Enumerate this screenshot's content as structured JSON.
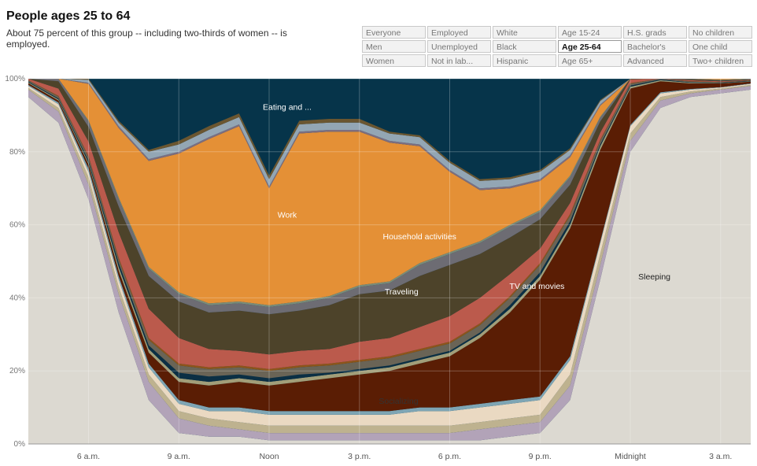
{
  "header": {
    "title": "People ages 25 to 64",
    "subtitle": "About 75 percent of this group -- including two-thirds of women -- is employed."
  },
  "filters": [
    [
      "Everyone",
      "Men",
      "Women"
    ],
    [
      "Employed",
      "Unemployed",
      "Not in lab..."
    ],
    [
      "White",
      "Black",
      "Hispanic"
    ],
    [
      "Age 15-24",
      "Age 25-64",
      "Age 65+"
    ],
    [
      "H.S. grads",
      "Bachelor's",
      "Advanced"
    ],
    [
      "No children",
      "One child",
      "Two+ children"
    ]
  ],
  "active_filter": "Age 25-64",
  "chart_data": {
    "type": "area",
    "stacked": true,
    "x": [
      4,
      5,
      6,
      7,
      8,
      9,
      10,
      11,
      12,
      13,
      14,
      15,
      16,
      17,
      18,
      19,
      20,
      21,
      22,
      23,
      24,
      25,
      26,
      27,
      28
    ],
    "x_ticks": [
      "6 a.m.",
      "9 a.m.",
      "Noon",
      "3 p.m.",
      "6 p.m.",
      "9 p.m.",
      "Midnight",
      "3 a.m."
    ],
    "x_tick_positions": [
      6,
      9,
      12,
      15,
      18,
      21,
      24,
      27
    ],
    "y_ticks": [
      "0%",
      "20%",
      "40%",
      "60%",
      "80%",
      "100%"
    ],
    "ylim": [
      0,
      100
    ],
    "grid": true,
    "series": [
      {
        "name": "Sleeping",
        "color": "#dcd9d1",
        "values": [
          95,
          88,
          67,
          36,
          12,
          3,
          2,
          2,
          1,
          1,
          1,
          1,
          1,
          1,
          1,
          1,
          2,
          3,
          12,
          45,
          80,
          92,
          95,
          96,
          97
        ]
      },
      {
        "name": "",
        "color": "#b2a3b8",
        "values": [
          2,
          3,
          4,
          5,
          5,
          4,
          3,
          2,
          2,
          2,
          2,
          2,
          2,
          2,
          2,
          3,
          3,
          3,
          4,
          4,
          3,
          2,
          1,
          1,
          1
        ]
      },
      {
        "name": "",
        "color": "#beb28f",
        "values": [
          0.5,
          1,
          2,
          2,
          2,
          2,
          2,
          2,
          2,
          2,
          2,
          2,
          2,
          2,
          2,
          2,
          2,
          2,
          3,
          3,
          2,
          1,
          0.5,
          0.3,
          0.3
        ]
      },
      {
        "name": "Socializing",
        "color": "#ead9c2",
        "values": [
          0.5,
          1,
          1.5,
          2,
          2,
          2,
          2,
          3,
          3,
          3,
          3,
          3,
          3,
          4,
          4,
          4,
          4,
          4,
          4,
          3,
          2,
          1,
          0.5,
          0.3,
          0.3
        ]
      },
      {
        "name": "",
        "color": "#7ea5b4",
        "values": [
          0.3,
          0.5,
          1,
          1,
          1,
          1,
          1,
          1,
          1,
          1,
          1,
          1,
          1,
          1,
          1,
          1,
          1,
          1,
          1,
          0.5,
          0.3,
          0.3,
          0.2,
          0.1,
          0.1
        ]
      },
      {
        "name": "TV and movies",
        "color": "#5a1d04",
        "values": [
          0.5,
          0.5,
          1,
          1.5,
          3,
          5,
          6,
          7,
          7,
          8,
          9,
          10,
          11,
          12,
          14,
          18,
          24,
          32,
          35,
          25,
          10,
          3,
          1.5,
          1,
          0.5
        ]
      },
      {
        "name": "",
        "color": "#a29e79",
        "values": [
          0.2,
          0.3,
          0.5,
          1,
          1,
          1,
          1,
          1,
          1,
          1,
          1,
          1,
          1,
          1,
          1,
          1,
          1,
          1,
          1,
          1,
          0.5,
          0.3,
          0.2,
          0.1,
          0.1
        ]
      },
      {
        "name": "",
        "color": "#0b2f44",
        "values": [
          0.2,
          0.3,
          0.5,
          1,
          1,
          1.5,
          1.5,
          1,
          1,
          1,
          0.5,
          0.5,
          0.5,
          0.5,
          0.5,
          0.5,
          1,
          1,
          1,
          0.5,
          0.3,
          0.2,
          0.1,
          0.1,
          0.1
        ]
      },
      {
        "name": "",
        "color": "#6a6456",
        "values": [
          0.3,
          0.5,
          1,
          1,
          1.5,
          2,
          2,
          2,
          2,
          2,
          2,
          2,
          2,
          2,
          2,
          2,
          2,
          2,
          1.5,
          1,
          0.5,
          0.3,
          0.2,
          0.1,
          0.1
        ]
      },
      {
        "name": "",
        "color": "#8e5519",
        "values": [
          0.1,
          0.2,
          0.3,
          0.5,
          0.5,
          0.5,
          0.5,
          0.5,
          0.5,
          0.5,
          0.5,
          0.5,
          0.5,
          0.5,
          0.5,
          0.5,
          0.5,
          0.5,
          0.5,
          0.3,
          0.2,
          0.1,
          0.1,
          0.1,
          0.1
        ]
      },
      {
        "name": "Traveling",
        "color": "#bb5a4c",
        "values": [
          0.5,
          2,
          4,
          7,
          8,
          7,
          5,
          4,
          4,
          4,
          4,
          5,
          5,
          6,
          7,
          7,
          6,
          4,
          3,
          2,
          1,
          0.5,
          0.3,
          0.2,
          0.1
        ]
      },
      {
        "name": "Household activities",
        "color": "#4d432a",
        "values": [
          0.5,
          2,
          4,
          7,
          9,
          10,
          10,
          11,
          11,
          11,
          12,
          13,
          13,
          14,
          14,
          12,
          10,
          8,
          5,
          3,
          1.5,
          0.5,
          0.3,
          0.2,
          0.1
        ]
      },
      {
        "name": "",
        "color": "#6d6c73",
        "values": [
          0.3,
          1,
          1.5,
          2,
          2,
          2,
          2,
          2,
          2,
          2,
          2,
          2,
          2,
          3,
          3,
          3,
          3,
          2,
          2,
          1,
          0.5,
          0.3,
          0.2,
          0.1,
          0.1
        ]
      },
      {
        "name": "",
        "color": "#7a8c79",
        "values": [
          0.1,
          0.2,
          0.3,
          0.5,
          0.5,
          0.5,
          0.5,
          0.5,
          0.5,
          0.5,
          0.5,
          0.5,
          0.5,
          0.5,
          0.5,
          0.5,
          0.5,
          0.5,
          0.5,
          0.3,
          0.2,
          0.1,
          0.1,
          0.1,
          0.1
        ]
      },
      {
        "name": "Work",
        "color": "#e49036",
        "values": [
          1,
          2,
          10,
          19,
          29,
          38,
          45,
          48,
          32,
          46,
          45,
          42,
          38,
          32,
          22,
          14,
          10,
          8,
          5,
          3,
          2,
          1,
          0.5,
          0.5,
          0.5
        ]
      },
      {
        "name": "",
        "color": "#7d6e80",
        "values": [
          0.1,
          0.2,
          0.3,
          0.5,
          0.5,
          0.5,
          0.5,
          0.5,
          0.5,
          0.5,
          0.5,
          0.5,
          0.5,
          0.5,
          0.5,
          0.5,
          0.5,
          0.5,
          0.5,
          0.3,
          0.2,
          0.1,
          0.1,
          0.1,
          0.1
        ]
      },
      {
        "name": "",
        "color": "#93a6b4",
        "values": [
          0.2,
          0.4,
          0.8,
          1,
          2,
          2,
          2,
          2,
          2,
          2,
          2,
          2,
          2,
          2,
          2,
          2,
          2,
          2,
          1.5,
          1,
          0.6,
          0.4,
          0.2,
          0.2,
          0.2
        ]
      },
      {
        "name": "",
        "color": "#6b5630",
        "values": [
          0.1,
          0.2,
          0.3,
          0.5,
          0.5,
          1,
          1,
          1,
          1,
          1,
          1,
          1,
          0.5,
          0.5,
          0.5,
          0.5,
          0.5,
          0.5,
          0.5,
          0.3,
          0.2,
          0.1,
          0.1,
          0.1,
          0.1
        ]
      }
    ],
    "labels": [
      {
        "text": "Eating and ...",
        "series": "",
        "x": 12.6,
        "y": 91.5,
        "color": "#ffffff"
      },
      {
        "text": "Work",
        "series": "Work",
        "x": 12.6,
        "y": 62,
        "color": "#ffffff"
      },
      {
        "text": "Household activities",
        "series": "Household activities",
        "x": 17,
        "y": 56,
        "color": "#ffffff"
      },
      {
        "text": "Traveling",
        "series": "Traveling",
        "x": 16.4,
        "y": 41,
        "color": "#ffffff"
      },
      {
        "text": "TV and movies",
        "series": "TV and movies",
        "x": 20.9,
        "y": 42.5,
        "color": "#ffffff"
      },
      {
        "text": "Socializing",
        "series": "Socializing",
        "x": 16.3,
        "y": 11,
        "color": "#333333"
      },
      {
        "text": "Sleeping",
        "series": "Sleeping",
        "x": 24.8,
        "y": 45,
        "color": "#222222"
      }
    ],
    "top_color": "#06344a"
  }
}
